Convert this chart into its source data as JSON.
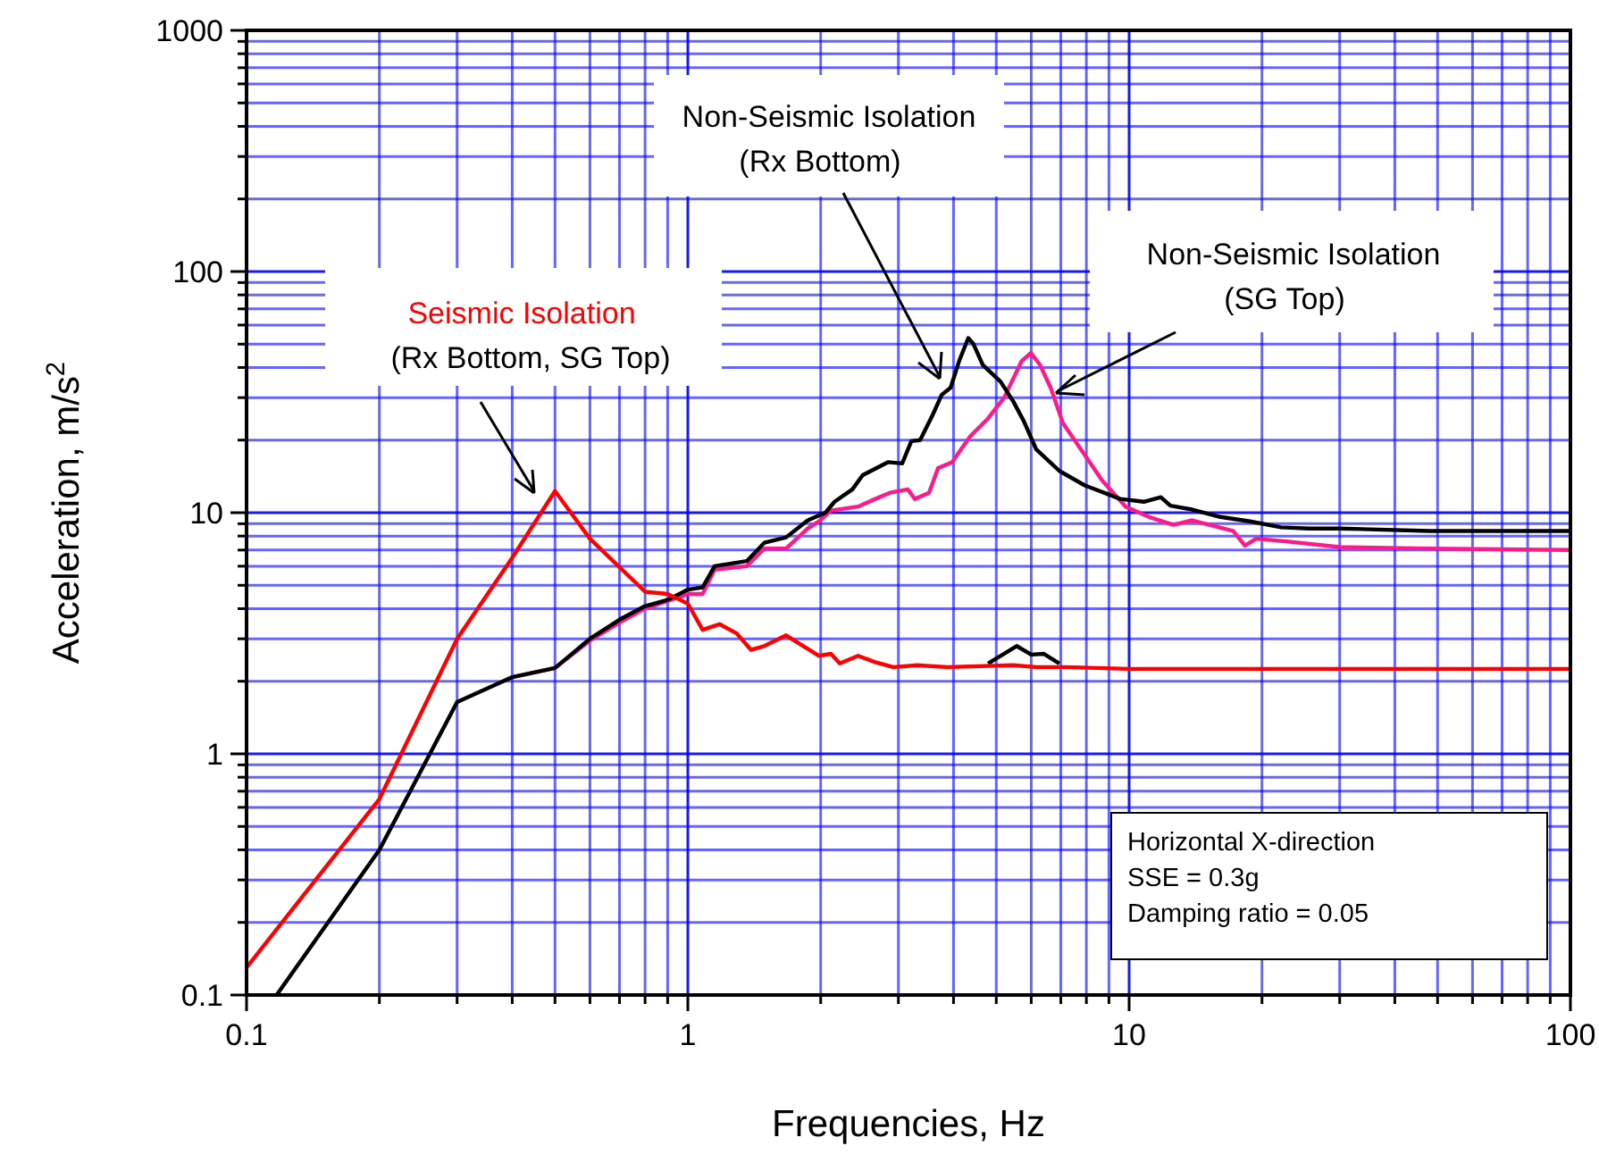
{
  "chart_data": {
    "type": "line",
    "xlabel": "Frequencies, Hz",
    "ylabel": "Acceleration, m/s$^{2}$",
    "log": "xy",
    "grid": true,
    "marker": "none",
    "line_style": "solid",
    "xlim": [
      0.1,
      100
    ],
    "ylim": [
      0.1,
      1000
    ],
    "xticks": [
      0.1,
      {
        "value": 0.2,
        "label": null
      },
      {
        "value": 0.3,
        "label": null
      },
      {
        "value": 0.4,
        "label": null
      },
      {
        "value": 0.5,
        "label": null
      },
      {
        "value": 0.6,
        "label": null
      },
      {
        "value": 0.7,
        "label": null
      },
      {
        "value": 0.8,
        "label": null
      },
      {
        "value": 0.9,
        "label": null
      },
      1,
      {
        "value": 2,
        "label": null
      },
      {
        "value": 3,
        "label": null
      },
      {
        "value": 4,
        "label": null
      },
      {
        "value": 5,
        "label": null
      },
      {
        "value": 6,
        "label": null
      },
      {
        "value": 7,
        "label": null
      },
      {
        "value": 8,
        "label": null
      },
      {
        "value": 9,
        "label": null
      },
      10,
      {
        "value": 20,
        "label": null
      },
      {
        "value": 30,
        "label": null
      },
      {
        "value": 40,
        "label": null
      },
      {
        "value": 50,
        "label": null
      },
      {
        "value": 60,
        "label": null
      },
      {
        "value": 70,
        "label": null
      },
      {
        "value": 80,
        "label": null
      },
      {
        "value": 90,
        "label": null
      },
      100
    ],
    "yticks": [
      0.1,
      {
        "value": 0.2,
        "label": null
      },
      {
        "value": 0.3,
        "label": null
      },
      {
        "value": 0.4,
        "label": null
      },
      {
        "value": 0.5,
        "label": null
      },
      {
        "value": 0.6,
        "label": null
      },
      {
        "value": 0.7,
        "label": null
      },
      {
        "value": 0.8,
        "label": null
      },
      {
        "value": 0.9,
        "label": null
      },
      1,
      {
        "value": 2,
        "label": null
      },
      {
        "value": 3,
        "label": null
      },
      {
        "value": 4,
        "label": null
      },
      {
        "value": 5,
        "label": null
      },
      {
        "value": 6,
        "label": null
      },
      {
        "value": 7,
        "label": null
      },
      {
        "value": 8,
        "label": null
      },
      {
        "value": 9,
        "label": null
      },
      10,
      {
        "value": 20,
        "label": null
      },
      {
        "value": 30,
        "label": null
      },
      {
        "value": 40,
        "label": null
      },
      {
        "value": 50,
        "label": null
      },
      {
        "value": 60,
        "label": null
      },
      {
        "value": 70,
        "label": null
      },
      {
        "value": 80,
        "label": null
      },
      {
        "value": 90,
        "label": null
      },
      100,
      {
        "value": 200,
        "label": null
      },
      {
        "value": 300,
        "label": null
      },
      {
        "value": 400,
        "label": null
      },
      {
        "value": 500,
        "label": null
      },
      {
        "value": 600,
        "label": null
      },
      {
        "value": 700,
        "label": null
      },
      {
        "value": 800,
        "label": null
      },
      {
        "value": 900,
        "label": null
      },
      1000
    ],
    "series": [
      {
        "color": "#ff1a8c",
        "x": [
          0.4,
          0.5,
          0.6,
          0.7,
          0.8,
          0.9,
          1.0,
          1.08,
          1.15,
          1.36,
          1.49,
          1.67,
          1.87,
          1.98,
          2.11,
          2.43,
          2.66,
          2.87,
          3.15,
          3.27,
          3.52,
          3.69,
          3.97,
          4.36,
          4.79,
          5.21,
          5.71,
          5.99,
          6.28,
          6.64,
          7.08,
          7.78,
          8.69,
          9.82,
          11.1,
          12.6,
          13.9,
          15.2,
          17.2,
          18.3,
          19.4,
          22.7,
          30,
          48,
          100
        ],
        "values": [
          2.08,
          2.27,
          2.95,
          3.5,
          4.0,
          4.3,
          4.6,
          4.6,
          5.8,
          6.0,
          7.1,
          7.1,
          8.6,
          9.2,
          10.2,
          10.6,
          11.4,
          12.1,
          12.5,
          11.4,
          12.1,
          15.3,
          16.2,
          20.7,
          24.6,
          30,
          42.6,
          46,
          41,
          33,
          23.5,
          18.3,
          13.6,
          10.6,
          9.6,
          8.9,
          9.3,
          8.9,
          8.4,
          7.3,
          7.8,
          7.6,
          7.2,
          7.1,
          7.0
        ]
      },
      {
        "color": "#000000",
        "x": [
          0.117,
          0.2,
          0.3,
          0.4,
          0.5,
          0.6,
          0.7,
          0.8,
          0.9,
          1.0,
          1.08,
          1.15,
          1.36,
          1.49,
          1.67,
          1.87,
          2.05,
          2.15,
          2.36,
          2.49,
          2.84,
          3.06,
          3.21,
          3.36,
          3.59,
          3.76,
          3.94,
          4.12,
          4.32,
          4.44,
          4.66,
          5.11,
          5.46,
          5.77,
          6.16,
          6.95,
          7.92,
          9.55,
          10.8,
          11.8,
          12.4,
          13.9,
          16.1,
          18.8,
          22.1,
          25.6,
          30,
          48,
          100
        ],
        "values": [
          0.1,
          0.4,
          1.64,
          2.08,
          2.27,
          3.0,
          3.6,
          4.1,
          4.35,
          4.8,
          4.9,
          6.0,
          6.3,
          7.5,
          7.9,
          9.3,
          10,
          11.1,
          12.5,
          14.3,
          16.2,
          16,
          19.8,
          20,
          25.5,
          30.8,
          33,
          42.6,
          53,
          50,
          41,
          35,
          29,
          24,
          18.3,
          14.9,
          13,
          11.4,
          11.1,
          11.6,
          10.7,
          10.3,
          9.6,
          9.2,
          8.7,
          8.6,
          8.6,
          8.4,
          8.4
        ]
      },
      {
        "color": "#000000",
        "x": [
          4.79,
          5.56,
          6.0,
          6.4,
          6.95
        ],
        "values": [
          2.37,
          2.8,
          2.58,
          2.6,
          2.37
        ]
      },
      {
        "color": "#ff0000",
        "x": [
          0.1,
          0.2,
          0.3,
          0.4,
          0.5,
          0.6,
          0.8,
          0.9,
          1.0,
          1.08,
          1.18,
          1.29,
          1.39,
          1.49,
          1.67,
          1.98,
          2.11,
          2.21,
          2.43,
          2.66,
          2.92,
          3.3,
          3.87,
          5.46,
          6.16,
          7.2,
          10,
          20,
          50,
          100
        ],
        "values": [
          0.13,
          0.65,
          3.0,
          6.5,
          12.3,
          7.8,
          4.7,
          4.6,
          4.2,
          3.27,
          3.45,
          3.16,
          2.7,
          2.8,
          3.1,
          2.55,
          2.6,
          2.37,
          2.55,
          2.4,
          2.29,
          2.33,
          2.29,
          2.33,
          2.29,
          2.29,
          2.25,
          2.25,
          2.25,
          2.25
        ]
      }
    ],
    "annotations": [
      "Seismic Isolation",
      "(Rx Bottom, SG Top)",
      "Non-Seismic Isolation",
      "(Rx Bottom)",
      "Non-Seismic Isolation",
      "(SG Top)",
      "Horizontal X-direction",
      "SSE = 0.3g",
      "Damping ratio = 0.05"
    ]
  }
}
